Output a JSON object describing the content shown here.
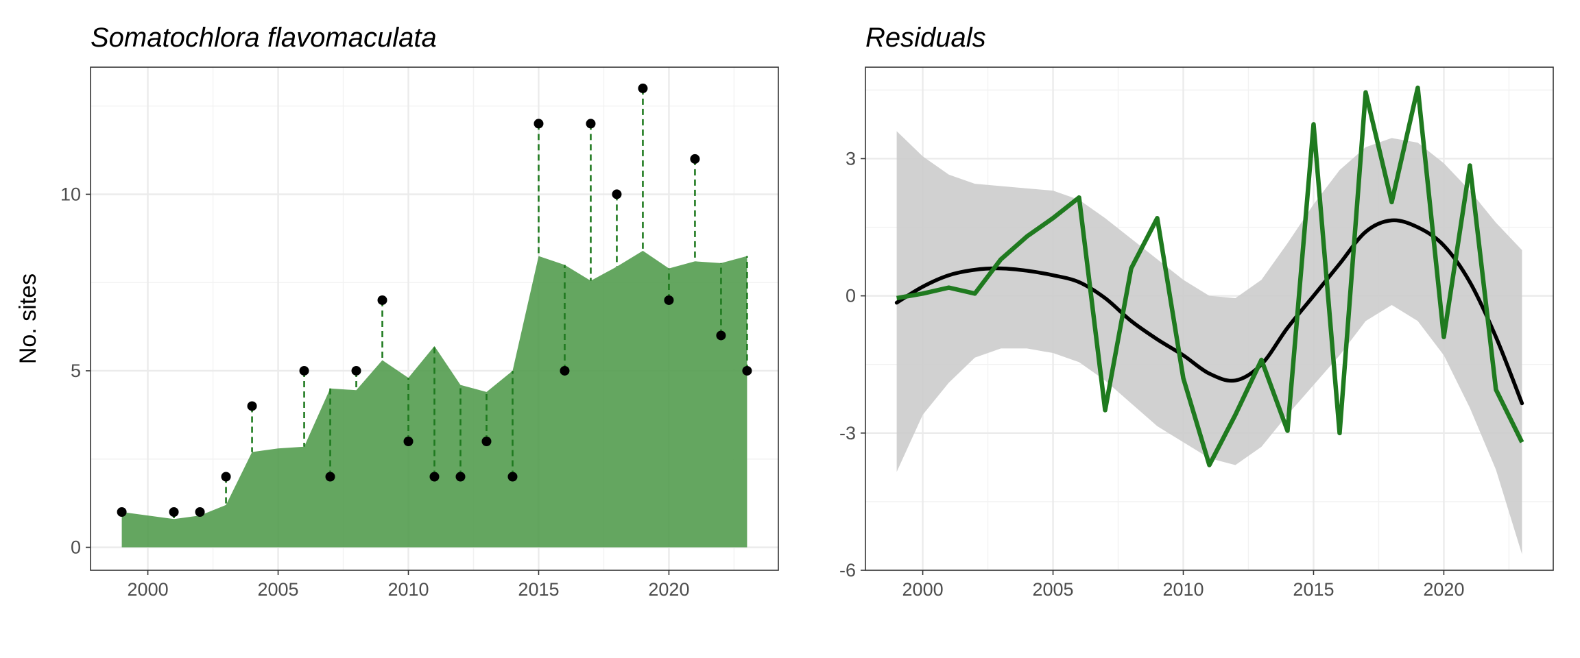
{
  "chart_data": [
    {
      "type": "area",
      "title": "Somatochlora flavomaculata",
      "xlabel": "",
      "ylabel": "No. sites",
      "xlim": [
        1997.8,
        2024.2
      ],
      "ylim": [
        -0.65,
        13.6
      ],
      "x_ticks": [
        2000,
        2005,
        2010,
        2015,
        2020
      ],
      "y_ticks": [
        0,
        5,
        10
      ],
      "grid": true,
      "series": [
        {
          "kind": "area",
          "color": "#4e9a4a",
          "x": [
            1999,
            2000,
            2001,
            2002,
            2003,
            2004,
            2005,
            2006,
            2007,
            2008,
            2009,
            2010,
            2011,
            2012,
            2013,
            2014,
            2015,
            2016,
            2017,
            2018,
            2019,
            2020,
            2021,
            2022,
            2023
          ],
          "y": [
            1.0,
            0.9,
            0.8,
            0.9,
            1.2,
            2.7,
            2.8,
            2.85,
            4.5,
            4.45,
            5.3,
            4.8,
            5.7,
            4.6,
            4.4,
            5.0,
            8.25,
            8.0,
            7.55,
            7.95,
            8.4,
            7.9,
            8.1,
            8.05,
            8.25
          ]
        },
        {
          "kind": "points",
          "color": "#000000",
          "x": [
            1999,
            2001,
            2002,
            2003,
            2004,
            2006,
            2007,
            2008,
            2009,
            2010,
            2011,
            2012,
            2013,
            2014,
            2015,
            2016,
            2017,
            2018,
            2019,
            2020,
            2021,
            2022,
            2023
          ],
          "y": [
            1,
            1,
            1,
            2,
            4,
            5,
            2,
            5,
            7,
            3,
            2,
            2,
            3,
            2,
            12,
            5,
            12,
            10,
            13,
            7,
            11,
            6,
            5
          ]
        }
      ],
      "residual_lines": {
        "style": "dashed",
        "color": "#1f7a1f"
      }
    },
    {
      "type": "line",
      "title": "Residuals",
      "xlabel": "",
      "ylabel": "",
      "xlim": [
        1997.8,
        2024.2
      ],
      "ylim": [
        -6.0,
        5.0
      ],
      "x_ticks": [
        2000,
        2005,
        2010,
        2015,
        2020
      ],
      "y_ticks": [
        -6,
        -3,
        0,
        3
      ],
      "y_tick_labels": [
        "-6",
        "-3",
        "0",
        "3"
      ],
      "grid": true,
      "series": [
        {
          "kind": "line",
          "color": "#1f7a1f",
          "x": [
            1999,
            2000,
            2001,
            2002,
            2003,
            2004,
            2005,
            2006,
            2007,
            2008,
            2009,
            2010,
            2011,
            2012,
            2013,
            2014,
            2015,
            2016,
            2017,
            2018,
            2019,
            2020,
            2021,
            2022,
            2023
          ],
          "y": [
            -0.05,
            0.05,
            0.18,
            0.05,
            0.8,
            1.3,
            1.7,
            2.15,
            -2.5,
            0.6,
            1.7,
            -1.8,
            -3.7,
            -2.6,
            -1.4,
            -2.95,
            3.75,
            -3.0,
            4.45,
            2.05,
            4.55,
            -0.9,
            2.85,
            -2.05,
            -3.2
          ]
        },
        {
          "kind": "smooth",
          "color": "#000000",
          "x": [
            1999,
            2000,
            2001,
            2002,
            2003,
            2004,
            2005,
            2006,
            2007,
            2008,
            2009,
            2010,
            2011,
            2012,
            2013,
            2014,
            2015,
            2016,
            2017,
            2018,
            2019,
            2020,
            2021,
            2022,
            2023
          ],
          "y": [
            -0.15,
            0.2,
            0.45,
            0.57,
            0.6,
            0.55,
            0.45,
            0.3,
            -0.05,
            -0.55,
            -0.95,
            -1.3,
            -1.7,
            -1.85,
            -1.5,
            -0.7,
            0.0,
            0.7,
            1.4,
            1.65,
            1.5,
            1.1,
            0.3,
            -0.9,
            -2.35
          ]
        },
        {
          "kind": "ribbon",
          "color": "#cccccc",
          "x": [
            1999,
            2000,
            2001,
            2002,
            2003,
            2004,
            2005,
            2006,
            2007,
            2008,
            2009,
            2010,
            2011,
            2012,
            2013,
            2014,
            2015,
            2016,
            2017,
            2018,
            2019,
            2020,
            2021,
            2022,
            2023
          ],
          "lower": [
            -3.85,
            -2.6,
            -1.9,
            -1.35,
            -1.15,
            -1.15,
            -1.25,
            -1.45,
            -1.85,
            -2.35,
            -2.85,
            -3.2,
            -3.55,
            -3.7,
            -3.3,
            -2.6,
            -1.95,
            -1.3,
            -0.55,
            -0.2,
            -0.55,
            -1.3,
            -2.45,
            -3.8,
            -5.65
          ],
          "upper": [
            3.6,
            3.05,
            2.65,
            2.45,
            2.4,
            2.35,
            2.3,
            2.1,
            1.7,
            1.25,
            0.8,
            0.35,
            0.0,
            -0.05,
            0.35,
            1.15,
            2.0,
            2.75,
            3.25,
            3.45,
            3.35,
            2.9,
            2.3,
            1.6,
            1.0
          ]
        }
      ]
    }
  ]
}
